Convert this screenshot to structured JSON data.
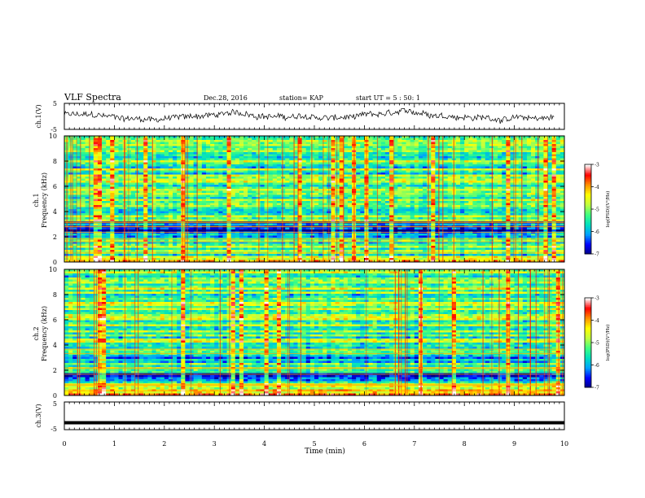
{
  "header": {
    "title": "VLF Spectra",
    "date": "Dec.28, 2016",
    "station": "station= KAP",
    "start": "start  UT =  5 : 50: 1"
  },
  "colors": {
    "axis": "#000000",
    "waveform": "#000000",
    "colormap": [
      "#000080",
      "#0000ff",
      "#00a0ff",
      "#00e0c0",
      "#40ff80",
      "#c0ff40",
      "#ffff00",
      "#ff9000",
      "#ff0000",
      "#ffffff"
    ]
  },
  "chart_data": [
    {
      "type": "line",
      "panel": "ch1-waveform",
      "ylabel": "ch.1(V)",
      "ylim": [
        -5,
        5
      ],
      "yticks": [
        "5",
        "-5"
      ],
      "x_range_min": [
        0,
        9.8
      ],
      "description_values": "noisy waveform approx. between -2.5 and 2.5 V"
    },
    {
      "type": "heatmap",
      "panel": "ch1-spectrogram",
      "ylabel": "ch.1\nFrequency (kHz)",
      "ylabel_line1": "ch.1",
      "ylabel_line2": "Frequency (kHz)",
      "ylim": [
        0,
        10
      ],
      "yticks": [
        "0",
        "2",
        "4",
        "6",
        "8",
        "10"
      ],
      "colorbar": {
        "label": "log(PSD)(V²/Hz)",
        "range": [
          -7,
          -3
        ],
        "ticks": [
          "-3",
          "-4",
          "-5",
          "-6",
          "-7"
        ]
      }
    },
    {
      "type": "heatmap",
      "panel": "ch2-spectrogram",
      "ylabel_line1": "ch.2",
      "ylabel_line2": "Frequency (kHz)",
      "ylim": [
        0,
        10
      ],
      "yticks": [
        "0",
        "2",
        "4",
        "6",
        "8",
        "10"
      ],
      "colorbar": {
        "label": "log(PSD)(V²/Hz)",
        "range": [
          -7,
          -3
        ],
        "ticks": [
          "-3",
          "-4",
          "-5",
          "-6",
          "-7"
        ]
      }
    },
    {
      "type": "line",
      "panel": "ch3-waveform",
      "ylabel": "ch.3(V)",
      "ylim": [
        -5,
        5
      ],
      "yticks": [
        "5",
        "-5"
      ],
      "constant_value": -2.5
    }
  ],
  "xaxis": {
    "label": "Time (min)",
    "xlim": [
      0,
      10
    ],
    "ticks": [
      "0",
      "1",
      "2",
      "3",
      "4",
      "5",
      "6",
      "7",
      "8",
      "9",
      "10"
    ]
  }
}
